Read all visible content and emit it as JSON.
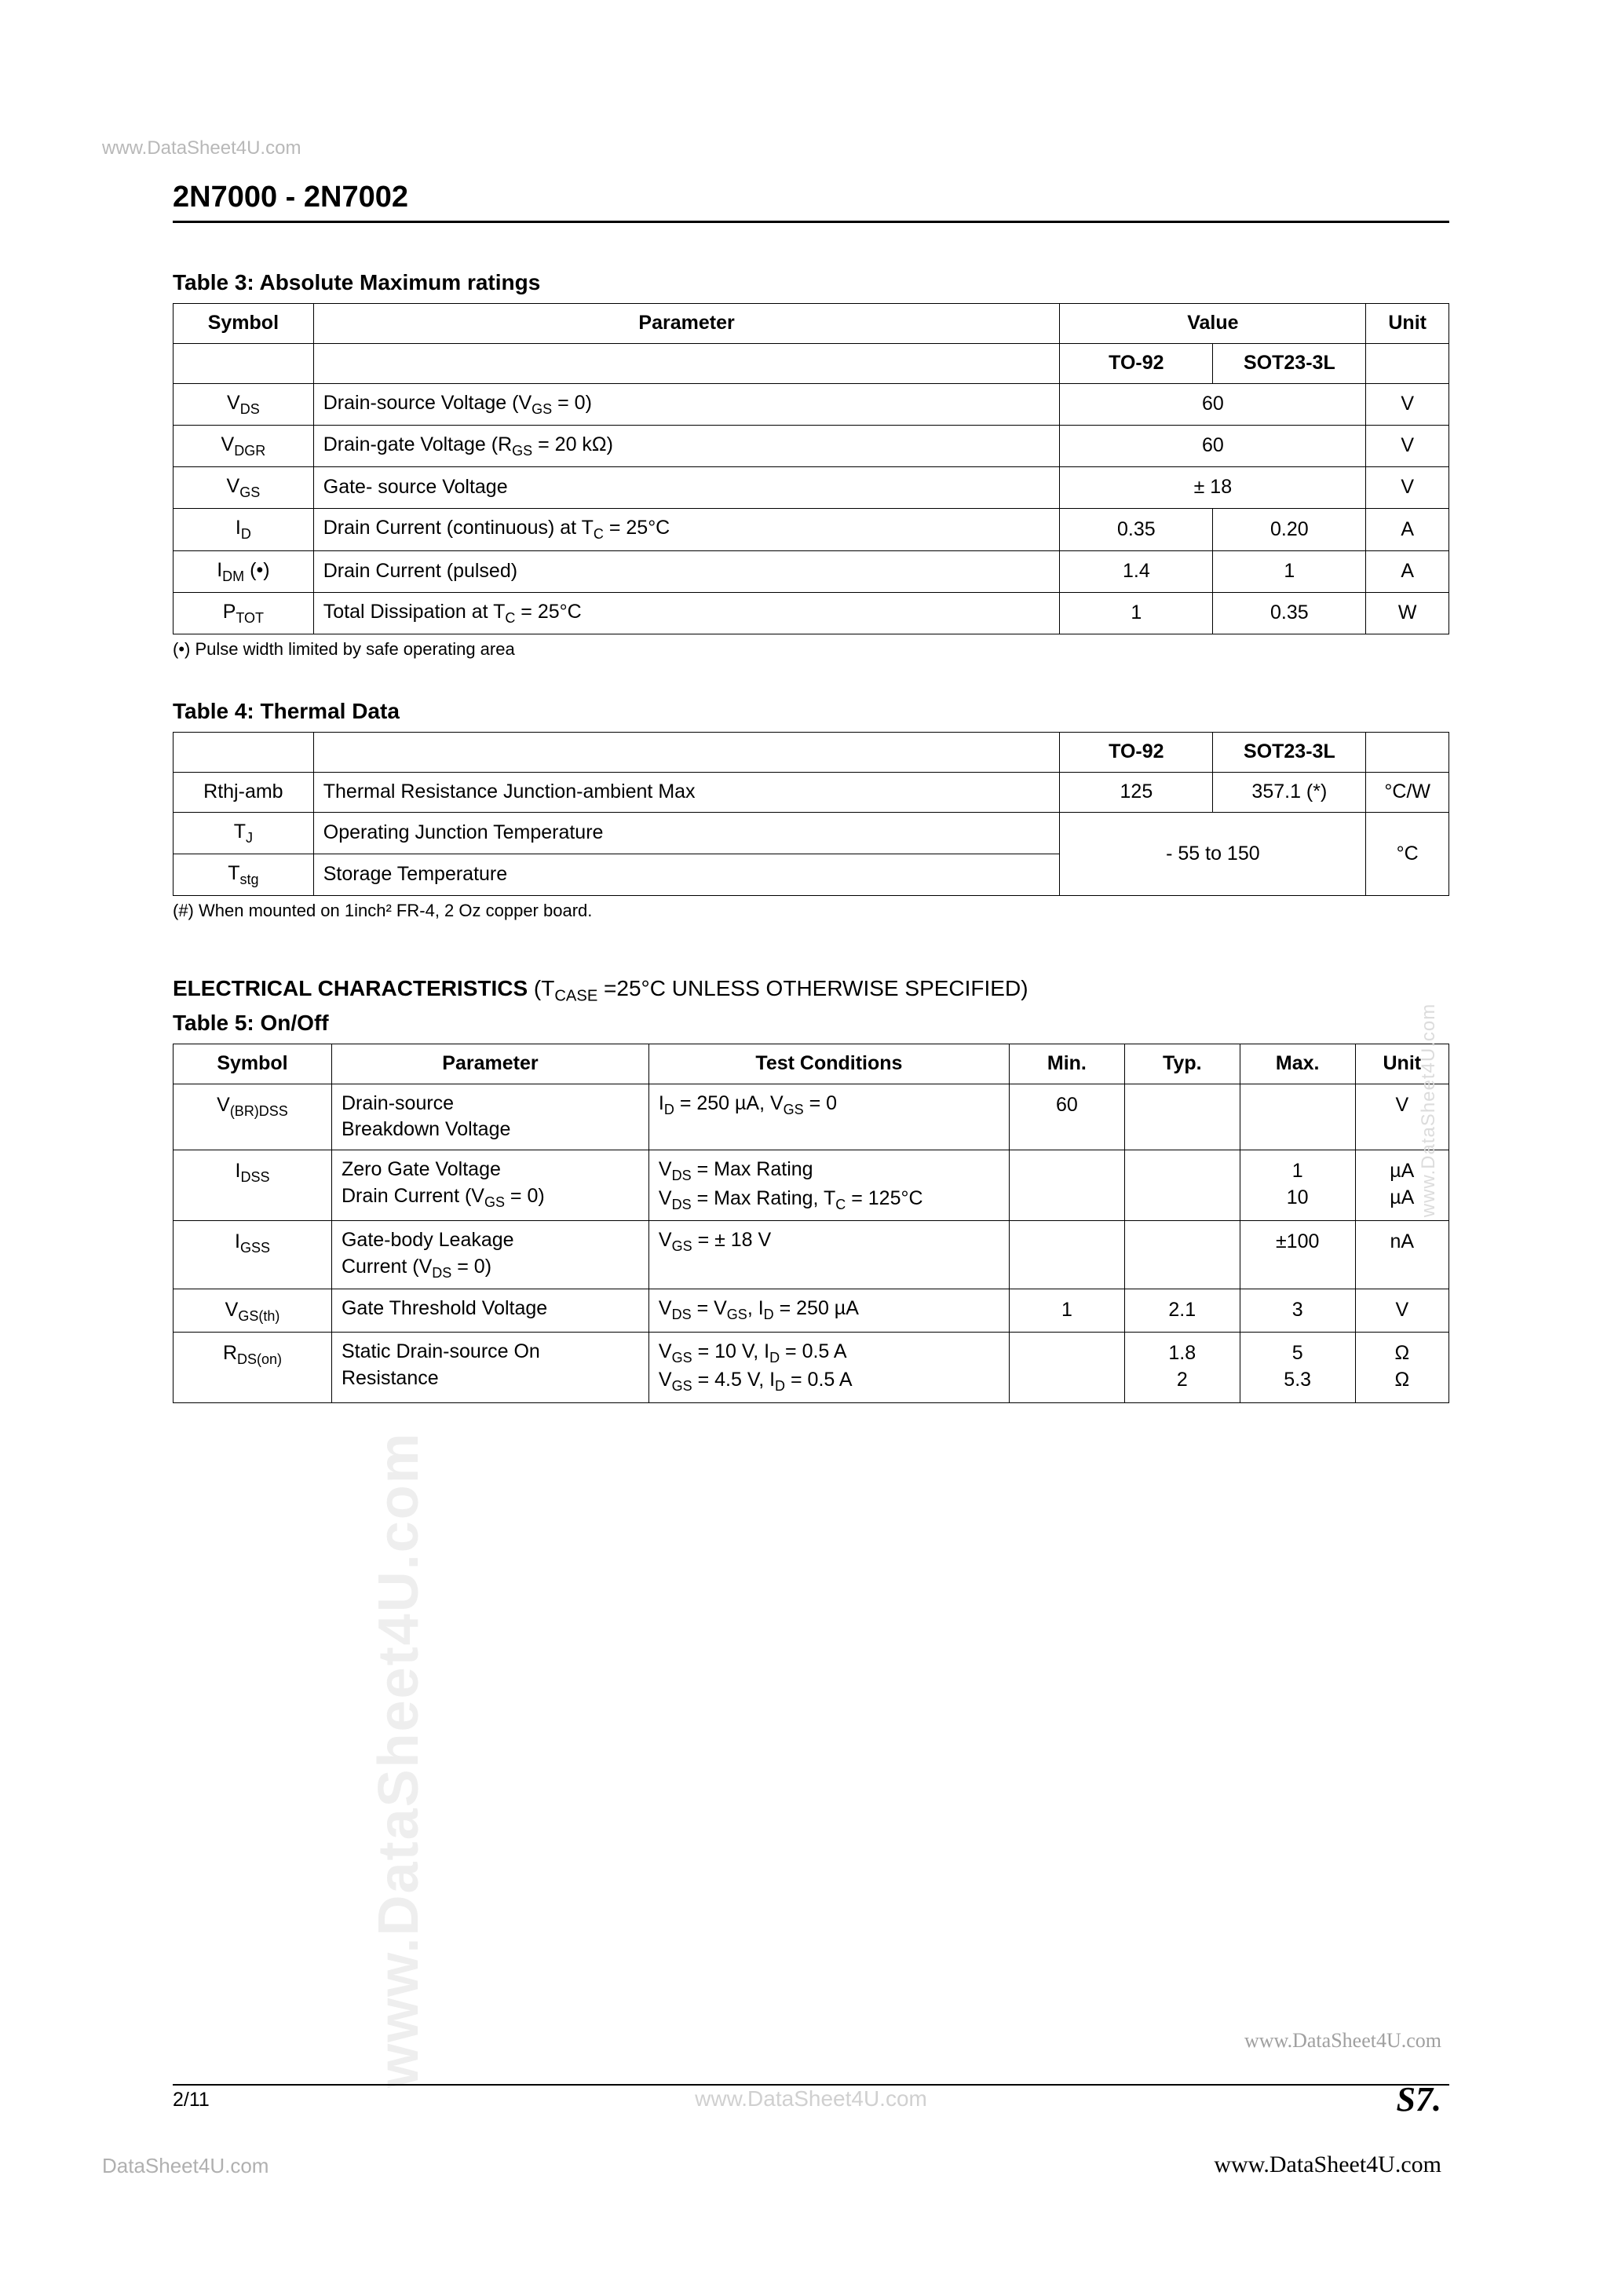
{
  "watermarks": {
    "top": "www.DataSheet4U.com",
    "right": "www.DataSheet4U.com",
    "left": "www.DataSheet4U.com",
    "bottomCenter": "www.DataSheet4U.com",
    "bottomRight1": "www.DataSheet4U.com",
    "bottomRight2": "www.DataSheet4U.com",
    "bottomLeft": "DataSheet4U.com"
  },
  "headerTitle": "2N7000 - 2N7002",
  "pageNumber": "2/11",
  "logo": "S7.",
  "table3": {
    "title": "Table 3: Absolute Maximum ratings",
    "headers": {
      "symbol": "Symbol",
      "parameter": "Parameter",
      "value": "Value",
      "unit": "Unit",
      "to92": "TO-92",
      "sot23": "SOT23-3L"
    },
    "rows": [
      {
        "sym": "V<sub>DS</sub>",
        "param": "Drain-source Voltage (V<sub>GS</sub> = 0)",
        "v1": "60",
        "v2": "",
        "merged": true,
        "unit": "V"
      },
      {
        "sym": "V<sub>DGR</sub>",
        "param": "Drain-gate Voltage (R<sub>GS</sub> = 20 kΩ)",
        "v1": "60",
        "v2": "",
        "merged": true,
        "unit": "V"
      },
      {
        "sym": "V<sub>GS</sub>",
        "param": "Gate- source Voltage",
        "v1": "± 18",
        "v2": "",
        "merged": true,
        "unit": "V"
      },
      {
        "sym": "I<sub>D</sub>",
        "param": "Drain Current (continuous) at T<sub>C</sub> = 25°C",
        "v1": "0.35",
        "v2": "0.20",
        "merged": false,
        "unit": "A"
      },
      {
        "sym": "I<sub>DM</sub> (•)",
        "param": "Drain Current (pulsed)",
        "v1": "1.4",
        "v2": "1",
        "merged": false,
        "unit": "A"
      },
      {
        "sym": "P<sub>TOT</sub>",
        "param": "Total Dissipation at T<sub>C</sub> = 25°C",
        "v1": "1",
        "v2": "0.35",
        "merged": false,
        "unit": "W"
      }
    ],
    "footnote": "(•) Pulse width limited by safe operating area"
  },
  "table4": {
    "title": "Table 4: Thermal Data",
    "headers": {
      "to92": "TO-92",
      "sot23": "SOT23-3L"
    },
    "rows": [
      {
        "sym": "Rthj-amb",
        "param": "Thermal Resistance Junction-ambient Max",
        "v1": "125",
        "v2": "357.1 (*)",
        "merged": false,
        "unit": "°C/W"
      },
      {
        "sym": "T<sub>J</sub>",
        "param": "Operating  Junction Temperature",
        "v1": "- 55 to 150",
        "v2": "",
        "merged": true,
        "unit": "°C",
        "unitRowspan": 2
      },
      {
        "sym": "T<sub>stg</sub>",
        "param": "Storage Temperature",
        "skipVal": true
      }
    ],
    "footnote": "(#)  When mounted on 1inch² FR-4, 2 Oz copper board."
  },
  "section5": {
    "heading": "<b>ELECTRICAL CHARACTERISTICS</b> (T<sub>CASE</sub> =25°C UNLESS OTHERWISE SPECIFIED)",
    "title": "Table 5: On/Off",
    "headers": {
      "symbol": "Symbol",
      "parameter": "Parameter",
      "test": "Test Conditions",
      "min": "Min.",
      "typ": "Typ.",
      "max": "Max.",
      "unit": "Unit"
    },
    "rows": [
      {
        "sym": "V<sub>(BR)DSS</sub>",
        "param": "Drain-source<br>Breakdown Voltage",
        "test": "I<sub>D</sub> = 250 µA, V<sub>GS</sub> = 0",
        "min": "60",
        "typ": "",
        "max": "",
        "unit": "V"
      },
      {
        "sym": "I<sub>DSS</sub>",
        "param": "Zero Gate Voltage<br>Drain Current (V<sub>GS</sub> = 0)",
        "test": "V<sub>DS</sub> = Max Rating<br>V<sub>DS</sub> = Max Rating, T<sub>C</sub> = 125°C",
        "min": "",
        "typ": "",
        "max": "1<br>10",
        "unit": "µA<br>µA"
      },
      {
        "sym": "I<sub>GSS</sub>",
        "param": "Gate-body Leakage<br>Current (V<sub>DS</sub> = 0)",
        "test": "V<sub>GS</sub> = ±  18 V",
        "min": "",
        "typ": "",
        "max": "±100",
        "unit": "nA"
      },
      {
        "sym": "V<sub>GS(th)</sub>",
        "param": "Gate Threshold Voltage",
        "test": "V<sub>DS</sub> = V<sub>GS</sub>, I<sub>D</sub> = 250 µA",
        "min": "1",
        "typ": "2.1",
        "max": "3",
        "unit": "V"
      },
      {
        "sym": "R<sub>DS(on)</sub>",
        "param": "Static Drain-source On<br>Resistance",
        "test": "V<sub>GS</sub> = 10 V, I<sub>D</sub> = 0.5 A<br>V<sub>GS</sub> = 4.5 V, I<sub>D</sub> = 0.5 A",
        "min": "",
        "typ": "1.8<br>2",
        "max": "5<br>5.3",
        "unit": "Ω<br>Ω"
      }
    ]
  }
}
